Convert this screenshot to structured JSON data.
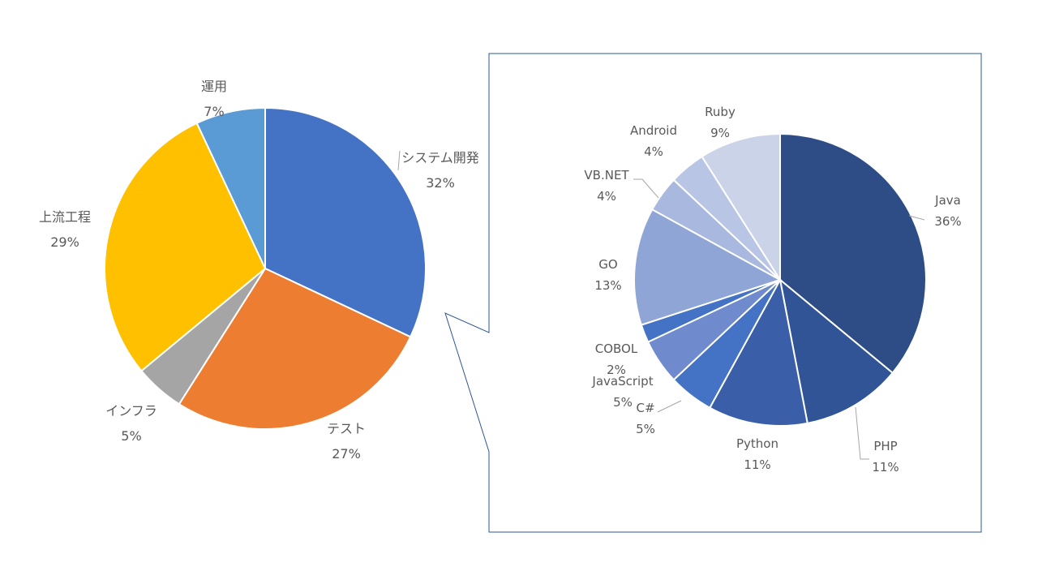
{
  "chart_data": [
    {
      "type": "pie",
      "title": "",
      "categories": [
        "システム開発",
        "テスト",
        "インフラ",
        "上流工程",
        "運用"
      ],
      "values": [
        32,
        27,
        5,
        29,
        7
      ],
      "value_labels": [
        "32%",
        "27%",
        "5%",
        "29%",
        "7%"
      ],
      "colors": [
        "#4472C4",
        "#ED7D31",
        "#A5A5A5",
        "#FFC000",
        "#5B9BD5"
      ],
      "start_angle_deg": 0,
      "direction": "clockwise"
    },
    {
      "type": "pie",
      "title": "",
      "detail_of": "システム開発",
      "categories": [
        "Java",
        "PHP",
        "Python",
        "C#",
        "JavaScript",
        "COBOL",
        "GO",
        "VB.NET",
        "Android",
        "Ruby"
      ],
      "values": [
        36,
        11,
        11,
        5,
        5,
        2,
        13,
        4,
        4,
        9
      ],
      "value_labels": [
        "36%",
        "11%",
        "11%",
        "5%",
        "5%",
        "2%",
        "13%",
        "4%",
        "4%",
        "9%"
      ],
      "colors": [
        "#2E4D86",
        "#305496",
        "#3A5FA8",
        "#4472C4",
        "#6F8BCD",
        "#4472C4",
        "#8EA5D6",
        "#A8B8DE",
        "#B8C5E4",
        "#CBD3E8"
      ],
      "start_angle_deg": 0,
      "direction": "clockwise"
    }
  ]
}
